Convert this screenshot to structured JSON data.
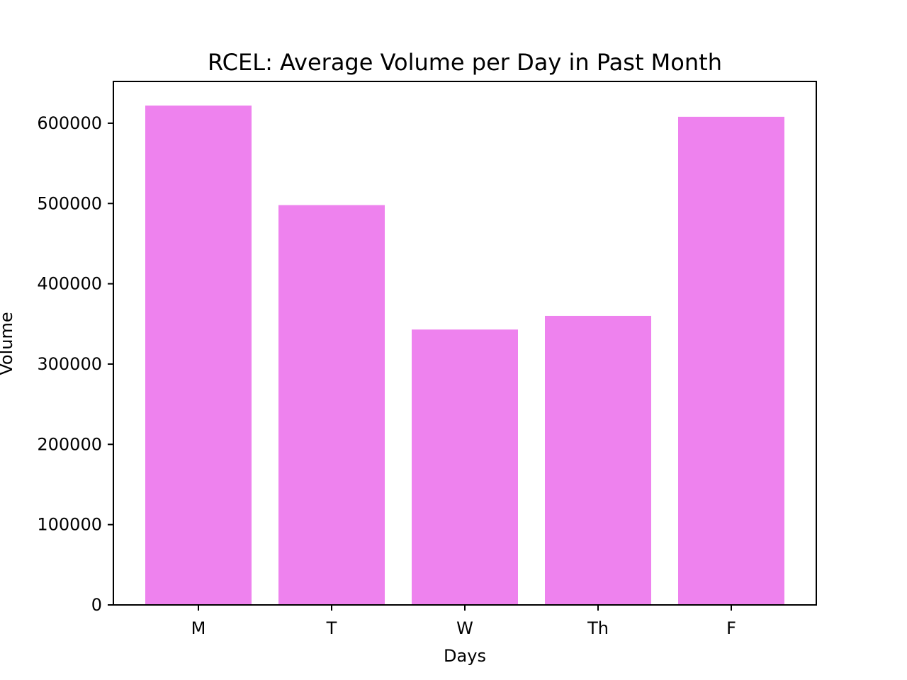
{
  "chart_data": {
    "type": "bar",
    "title": "RCEL: Average Volume per Day in Past Month",
    "xlabel": "Days",
    "ylabel": "Volume",
    "categories": [
      "M",
      "T",
      "W",
      "Th",
      "F"
    ],
    "values": [
      622000,
      498000,
      343000,
      360000,
      608000
    ],
    "ylim": [
      0,
      652000
    ],
    "yticks": [
      0,
      100000,
      200000,
      300000,
      400000,
      500000,
      600000
    ],
    "bar_color": "#ee82ee",
    "grid": false,
    "legend": "none"
  }
}
